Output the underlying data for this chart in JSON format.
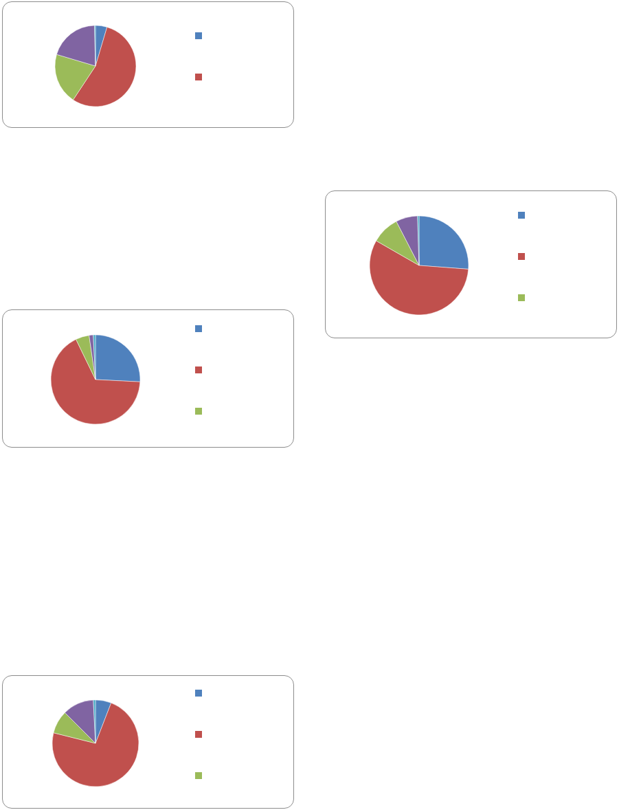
{
  "chart_data": [
    {
      "type": "pie",
      "categories": [
        null,
        null,
        null,
        null,
        null
      ],
      "values": [
        4.6,
        54.7,
        20.3,
        20.0,
        0.4
      ],
      "colors": [
        "#4f81bd",
        "#c0504d",
        "#9bbb59",
        "#8064a2",
        "#4bacc6"
      ]
    },
    {
      "type": "pie",
      "categories": [
        null,
        null,
        null,
        null,
        null
      ],
      "values": [
        25.8,
        67.0,
        4.9,
        1.5,
        0.8
      ],
      "colors": [
        "#4f81bd",
        "#c0504d",
        "#9bbb59",
        "#8064a2",
        "#4bacc6"
      ]
    },
    {
      "type": "pie",
      "categories": [
        null,
        null,
        null,
        null,
        null
      ],
      "values": [
        26.2,
        57.1,
        9.1,
        7.1,
        0.5
      ],
      "colors": [
        "#4f81bd",
        "#c0504d",
        "#9bbb59",
        "#8064a2",
        "#4bacc6"
      ]
    },
    {
      "type": "pie",
      "categories": [
        null,
        null,
        null,
        null,
        null
      ],
      "values": [
        5.9,
        73.0,
        8.6,
        11.7,
        0.8
      ],
      "colors": [
        "#4f81bd",
        "#c0504d",
        "#9bbb59",
        "#8064a2",
        "#4bacc6"
      ]
    }
  ]
}
